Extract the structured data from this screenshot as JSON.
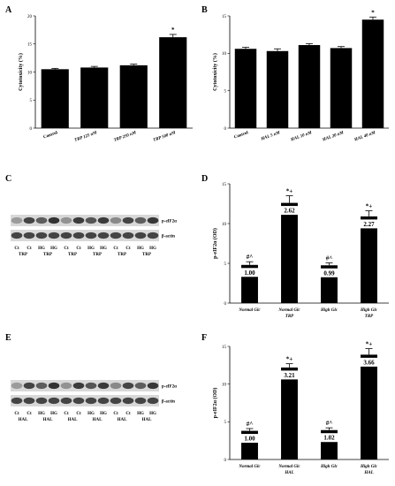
{
  "panels": {
    "A": {
      "letter": "A",
      "ylabel": "Cytotoxicity (%)",
      "ylim": [
        0,
        20
      ],
      "ticks": [
        0,
        5,
        10,
        15,
        20
      ],
      "categories": [
        "Control",
        "TRP 125 nM",
        "TRP 250 nM",
        "TRP 500 nM"
      ],
      "category_style": [
        "regular",
        "italic",
        "italic",
        "italic"
      ],
      "values": [
        10.5,
        10.8,
        11.2,
        16.2
      ],
      "errors": [
        0.15,
        0.2,
        0.2,
        0.5
      ],
      "top_labels": [
        "",
        "",
        "",
        "*"
      ],
      "value_labels": [
        "",
        "",
        "",
        ""
      ]
    },
    "B": {
      "letter": "B",
      "ylabel": "Cytotoxicity (%)",
      "ylim": [
        0,
        15
      ],
      "ticks": [
        0,
        5,
        10,
        15
      ],
      "categories": [
        "Control",
        "HAL 5 nM",
        "HAL 10 nM",
        "HAL 20 nM",
        "HAL 40 nM"
      ],
      "category_style": [
        "regular",
        "italic",
        "italic",
        "italic",
        "italic"
      ],
      "values": [
        10.6,
        10.3,
        11.1,
        10.7,
        14.5
      ],
      "errors": [
        0.2,
        0.3,
        0.2,
        0.2,
        0.35
      ],
      "top_labels": [
        "",
        "",
        "",
        "",
        "*"
      ],
      "value_labels": [
        "",
        "",
        "",
        "",
        ""
      ]
    },
    "C": {
      "letter": "C",
      "band_labels": [
        "p-eIF2α",
        "β-actin"
      ],
      "lane_top": [
        "Ct",
        "Ct",
        "HG",
        "HG",
        "Ct",
        "Ct",
        "HG",
        "HG",
        "Ct",
        "Ct",
        "HG",
        "HG"
      ],
      "lane_bottom": [
        "",
        "TRP",
        "",
        "TRP",
        "",
        "TRP",
        "",
        "TRP",
        "",
        "TRP",
        "",
        "TRP"
      ]
    },
    "D": {
      "letter": "D",
      "ylabel": "p-eIF2α (OD)",
      "ylim": [
        0,
        15
      ],
      "ticks": [
        0,
        5,
        10,
        15
      ],
      "categories": [
        "Normal Glc",
        "Normal Glc TRP",
        "High Glc",
        "High Glc TRP"
      ],
      "category_style": [
        "italic",
        "italic",
        "italic",
        "italic"
      ],
      "values": [
        4.8,
        12.6,
        4.75,
        10.9
      ],
      "errors": [
        0.4,
        0.9,
        0.3,
        0.7
      ],
      "top_labels": [
        "#^",
        "*+",
        "#^",
        "*+"
      ],
      "value_labels": [
        "1.00",
        "2.62",
        "0.99",
        "2.27"
      ]
    },
    "E": {
      "letter": "E",
      "band_labels": [
        "p-eIF2α",
        "β-actin"
      ],
      "lane_top": [
        "Ct",
        "Ct",
        "HG",
        "HG",
        "Ct",
        "Ct",
        "HG",
        "HG",
        "Ct",
        "Ct",
        "HG",
        "HG"
      ],
      "lane_bottom": [
        "",
        "HAL",
        "",
        "HAL",
        "",
        "HAL",
        "",
        "HAL",
        "",
        "HAL",
        "",
        "HAL"
      ]
    },
    "F": {
      "letter": "F",
      "ylabel": "p-eIF2α (OD)",
      "ylim": [
        0,
        15
      ],
      "ticks": [
        0,
        5,
        10,
        15
      ],
      "categories": [
        "Normal Glc",
        "Normal Glc HAL",
        "High Glc",
        "High Glc HAL"
      ],
      "category_style": [
        "italic",
        "italic",
        "italic",
        "italic"
      ],
      "values": [
        3.8,
        12.2,
        3.9,
        13.9
      ],
      "errors": [
        0.3,
        0.5,
        0.3,
        0.8
      ],
      "top_labels": [
        "#^",
        "*+",
        "#^",
        "*+"
      ],
      "value_labels": [
        "1.00",
        "3.21",
        "1.02",
        "3.66"
      ]
    }
  },
  "chart_data": [
    {
      "type": "bar",
      "panel": "A",
      "categories": [
        "Control",
        "TRP 125 nM",
        "TRP 250 nM",
        "TRP 500 nM"
      ],
      "values": [
        10.5,
        10.8,
        11.2,
        16.2
      ],
      "ylabel": "Cytotoxicity (%)",
      "ylim": [
        0,
        20
      ]
    },
    {
      "type": "bar",
      "panel": "B",
      "categories": [
        "Control",
        "HAL 5 nM",
        "HAL 10 nM",
        "HAL 20 nM",
        "HAL 40 nM"
      ],
      "values": [
        10.6,
        10.3,
        11.1,
        10.7,
        14.5
      ],
      "ylabel": "Cytotoxicity (%)",
      "ylim": [
        0,
        15
      ]
    },
    {
      "type": "bar",
      "panel": "D",
      "categories": [
        "Normal Glc",
        "Normal Glc TRP",
        "High Glc",
        "High Glc TRP"
      ],
      "values": [
        4.8,
        12.6,
        4.75,
        10.9
      ],
      "ylabel": "p-eIF2α (OD)",
      "ylim": [
        0,
        15
      ]
    },
    {
      "type": "bar",
      "panel": "F",
      "categories": [
        "Normal Glc",
        "Normal Glc HAL",
        "High Glc",
        "High Glc HAL"
      ],
      "values": [
        3.8,
        12.2,
        3.9,
        13.9
      ],
      "ylabel": "p-eIF2α (OD)",
      "ylim": [
        0,
        15
      ]
    }
  ],
  "colors": {
    "bar": "#000000",
    "axis": "#000000",
    "blot_bg": "#d8d8d8",
    "band": "#2a2a2a"
  }
}
